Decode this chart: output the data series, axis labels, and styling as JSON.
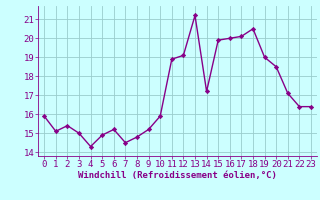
{
  "x": [
    0,
    1,
    2,
    3,
    4,
    5,
    6,
    7,
    8,
    9,
    10,
    11,
    12,
    13,
    14,
    15,
    16,
    17,
    18,
    19,
    20,
    21,
    22,
    23
  ],
  "y": [
    15.9,
    15.1,
    15.4,
    15.0,
    14.3,
    14.9,
    15.2,
    14.5,
    14.8,
    15.2,
    15.9,
    18.9,
    19.1,
    21.2,
    17.2,
    19.9,
    20.0,
    20.1,
    20.5,
    19.0,
    18.5,
    17.1,
    16.4,
    16.4
  ],
  "line_color": "#880088",
  "marker": "D",
  "marker_size": 2.2,
  "bg_color": "#ccffff",
  "grid_color": "#99cccc",
  "xlabel": "Windchill (Refroidissement éolien,°C)",
  "ylim": [
    13.8,
    21.7
  ],
  "xlim": [
    -0.5,
    23.5
  ],
  "yticks": [
    14,
    15,
    16,
    17,
    18,
    19,
    20,
    21
  ],
  "xticks": [
    0,
    1,
    2,
    3,
    4,
    5,
    6,
    7,
    8,
    9,
    10,
    11,
    12,
    13,
    14,
    15,
    16,
    17,
    18,
    19,
    20,
    21,
    22,
    23
  ],
  "xlabel_fontsize": 6.5,
  "tick_fontsize": 6.5,
  "line_width": 1.0
}
